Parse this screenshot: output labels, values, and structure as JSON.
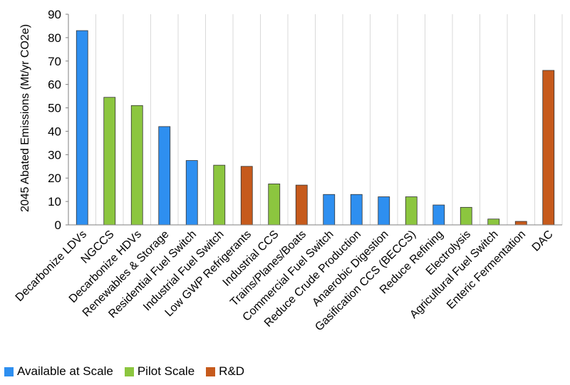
{
  "chart_data": {
    "type": "bar",
    "ylabel": "2045 Abated Emissions (Mt/yr CO2e)",
    "xlabel": "",
    "ylim": [
      0,
      90
    ],
    "yticks": [
      0,
      10,
      20,
      30,
      40,
      50,
      60,
      70,
      80,
      90
    ],
    "grid": "vertical",
    "legend_position": "bottom-left",
    "colors": {
      "available": "#2E8FF0",
      "pilot": "#8CC63F",
      "rd": "#C65A1C"
    },
    "legend": [
      {
        "key": "available",
        "label": "Available at Scale"
      },
      {
        "key": "pilot",
        "label": "Pilot Scale"
      },
      {
        "key": "rd",
        "label": "R&D"
      }
    ],
    "categories": [
      "Decarbonize LDVs",
      "NGCCS",
      "Decarbonize HDVs",
      "Renewables & Storage",
      "Residential Fuel Switch",
      "Industrial Fuel Switch",
      "Low GWP Refrigerants",
      "Industrial CCS",
      "Trains/Planes/Boats",
      "Commercial Fuel Switch",
      "Reduce Crude Production",
      "Anaerobic Digestion",
      "Gasification CCS (BECCS)",
      "Reduce Refining",
      "Electrolysis",
      "Agricultural Fuel Switch",
      "Enteric Fermentation",
      "DAC"
    ],
    "values": [
      83,
      54.5,
      51,
      42,
      27.5,
      25.5,
      25,
      17.5,
      17,
      13,
      13,
      12,
      12,
      8.5,
      7.5,
      2.5,
      1.5,
      66
    ],
    "groups": [
      "available",
      "pilot",
      "pilot",
      "available",
      "available",
      "pilot",
      "rd",
      "pilot",
      "rd",
      "available",
      "available",
      "available",
      "pilot",
      "available",
      "pilot",
      "pilot",
      "rd",
      "rd"
    ]
  }
}
